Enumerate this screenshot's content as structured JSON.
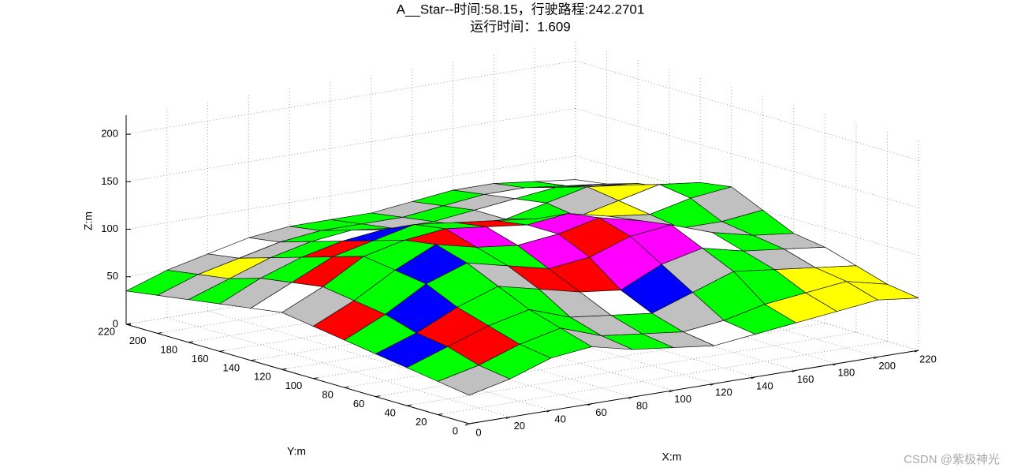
{
  "chart_data": {
    "type": "surface3d",
    "title": [
      "A__Star--时间:58.15，行驶路程:242.2701",
      "运行时间：1.609"
    ],
    "xlabel": "X:m",
    "ylabel": "Y:m",
    "zlabel": "Z:m",
    "xlim": [
      0,
      220
    ],
    "ylim": [
      0,
      220
    ],
    "zlim": [
      0,
      220
    ],
    "xticks": [
      0,
      20,
      40,
      60,
      80,
      100,
      120,
      140,
      160,
      180,
      200,
      220
    ],
    "yticks": [
      0,
      20,
      40,
      60,
      80,
      100,
      120,
      140,
      160,
      180,
      200,
      220
    ],
    "zticks": [
      0,
      50,
      100,
      150,
      200
    ],
    "grid": true,
    "x": [
      0,
      20,
      40,
      60,
      80,
      100,
      120,
      140,
      160,
      180,
      200,
      220
    ],
    "y": [
      0,
      20,
      40,
      60,
      80,
      100,
      120,
      140,
      160,
      180,
      200,
      220
    ],
    "z": [
      [
        30,
        40,
        55,
        60,
        50,
        45,
        40,
        45,
        50,
        55,
        60,
        55
      ],
      [
        35,
        45,
        60,
        70,
        55,
        50,
        45,
        50,
        60,
        65,
        70,
        60
      ],
      [
        40,
        55,
        70,
        80,
        65,
        60,
        55,
        70,
        85,
        80,
        75,
        70
      ],
      [
        45,
        60,
        80,
        95,
        85,
        75,
        70,
        90,
        100,
        90,
        85,
        80
      ],
      [
        50,
        70,
        95,
        110,
        100,
        90,
        95,
        110,
        115,
        100,
        90,
        85
      ],
      [
        55,
        75,
        100,
        120,
        110,
        105,
        110,
        120,
        110,
        95,
        95,
        100
      ],
      [
        60,
        80,
        105,
        115,
        120,
        115,
        110,
        115,
        105,
        100,
        110,
        115
      ],
      [
        55,
        75,
        95,
        105,
        115,
        110,
        105,
        100,
        95,
        105,
        115,
        110
      ],
      [
        50,
        70,
        85,
        95,
        100,
        95,
        90,
        90,
        100,
        110,
        105,
        95
      ],
      [
        45,
        60,
        75,
        85,
        90,
        85,
        85,
        90,
        95,
        100,
        95,
        90
      ],
      [
        40,
        55,
        65,
        75,
        80,
        80,
        80,
        85,
        90,
        90,
        85,
        80
      ],
      [
        35,
        50,
        60,
        70,
        75,
        75,
        75,
        80,
        85,
        85,
        80,
        75
      ]
    ],
    "cell_colors": [
      [
        "silver",
        "lime",
        "lime",
        "silver",
        "lime",
        "silver",
        "white",
        "lime",
        "yellow",
        "yellow",
        "yellow"
      ],
      [
        "lime",
        "red",
        "lime",
        "lime",
        "silver",
        "lime",
        "silver",
        "lime",
        "lime",
        "yellow",
        "yellow"
      ],
      [
        "blue",
        "red",
        "lime",
        "lime",
        "silver",
        "white",
        "blue",
        "silver",
        "lime",
        "silver",
        "white"
      ],
      [
        "lime",
        "blue",
        "lime",
        "silver",
        "red",
        "red",
        "magenta",
        "magenta",
        "white",
        "lime",
        "silver"
      ],
      [
        "red",
        "lime",
        "blue",
        "lime",
        "lime",
        "magenta",
        "red",
        "magenta",
        "lime",
        "silver",
        "lime"
      ],
      [
        "silver",
        "lime",
        "lime",
        "red",
        "magenta",
        "white",
        "magenta",
        "white",
        "silver",
        "lime",
        "silver"
      ],
      [
        "white",
        "red",
        "lime",
        "lime",
        "lime",
        "red",
        "lime",
        "silver",
        "yellow",
        "white",
        "lime"
      ],
      [
        "silver",
        "lime",
        "red",
        "blue",
        "lime",
        "silver",
        "lime",
        "lime",
        "silver",
        "yellow",
        "silver"
      ],
      [
        "lime",
        "silver",
        "lime",
        "white",
        "silver",
        "lime",
        "silver",
        "white",
        "lime",
        "silver",
        "yellow"
      ],
      [
        "silver",
        "yellow",
        "silver",
        "lime",
        "lime",
        "silver",
        "lime",
        "silver",
        "white",
        "lime",
        "silver"
      ],
      [
        "lime",
        "silver",
        "white",
        "silver",
        "lime",
        "lime",
        "silver",
        "lime",
        "silver",
        "lime",
        "white"
      ]
    ],
    "watermark": "CSDN @紫极神光"
  }
}
